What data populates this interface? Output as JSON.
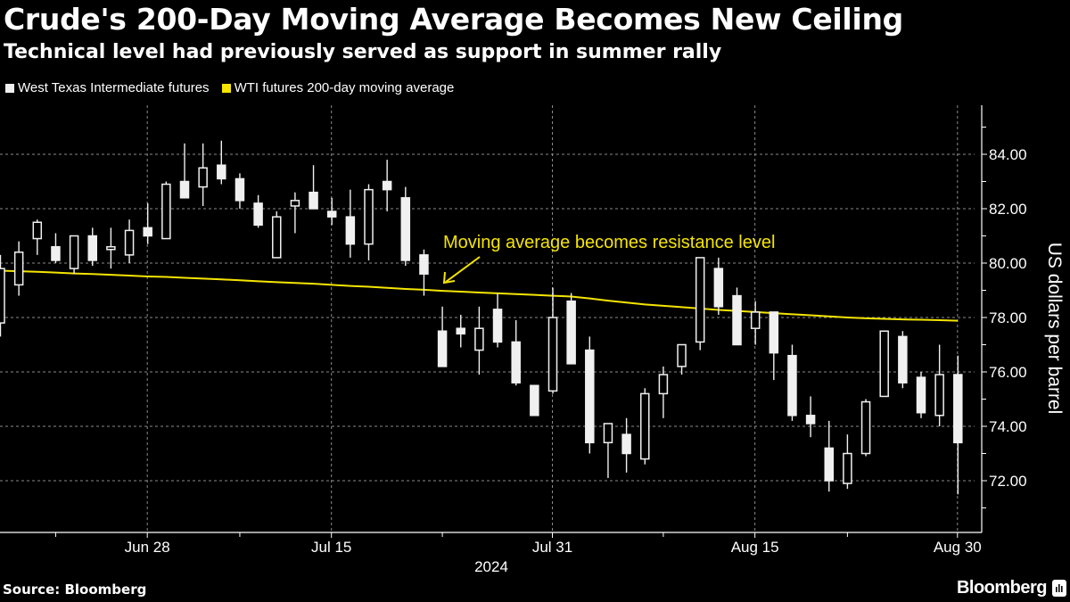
{
  "header": {
    "title": "Crude's 200-Day Moving Average Becomes New Ceiling",
    "subtitle": "Technical level had previously served as support in summer rally"
  },
  "legend": [
    {
      "label": "West Texas Intermediate futures",
      "color": "#f0f0f0"
    },
    {
      "label": "WTI futures 200-day moving average",
      "color": "#f5e500"
    }
  ],
  "footer": {
    "source": "Source: Bloomberg",
    "brand": "Bloomberg",
    "brand_icon": "bloomberg-terminal-icon"
  },
  "chart_data": {
    "type": "candlestick",
    "title": "Crude's 200-Day Moving Average Becomes New Ceiling",
    "subtitle": "Technical level had previously served as support in summer rally",
    "xlabel": "2024",
    "ylabel": "US dollars per barrel",
    "ylim": [
      70.3,
      85.5
    ],
    "yticks": [
      72,
      74,
      76,
      78,
      80,
      82,
      84
    ],
    "ytick_labels": [
      "72.00",
      "74.00",
      "76.00",
      "78.00",
      "80.00",
      "82.00",
      "84.00"
    ],
    "xtick_labels": [
      {
        "label": "Jun 28",
        "index": 8
      },
      {
        "label": "Jul 15",
        "index": 18
      },
      {
        "label": "Jul 31",
        "index": 30
      },
      {
        "label": "Aug 15",
        "index": 41
      },
      {
        "label": "Aug 30",
        "index": 52
      }
    ],
    "x_minor_tick_indices": [
      3,
      13,
      24,
      36,
      46
    ],
    "x_year_label": "2024",
    "grid": true,
    "legend_position": "top-left",
    "annotation": {
      "text": "Moving average becomes resistance level",
      "points_to_index": 24
    },
    "series": [
      {
        "name": "West Texas Intermediate futures",
        "kind": "ohlc",
        "ohlc": [
          [
            77.8,
            80.3,
            77.3,
            79.8
          ],
          [
            79.2,
            80.8,
            78.8,
            80.4
          ],
          [
            80.9,
            81.6,
            80.3,
            81.5
          ],
          [
            80.6,
            81.1,
            80.0,
            80.1
          ],
          [
            79.8,
            81.0,
            79.6,
            81.0
          ],
          [
            81.0,
            81.3,
            79.9,
            80.1
          ],
          [
            80.5,
            81.3,
            79.8,
            80.6
          ],
          [
            80.3,
            81.6,
            80.0,
            81.2
          ],
          [
            81.3,
            82.2,
            80.7,
            81.0
          ],
          [
            80.9,
            83.0,
            80.9,
            82.9
          ],
          [
            83.0,
            84.4,
            82.4,
            82.4
          ],
          [
            82.8,
            84.4,
            82.1,
            83.5
          ],
          [
            83.6,
            84.5,
            82.9,
            83.1
          ],
          [
            83.1,
            83.3,
            82.0,
            82.3
          ],
          [
            82.2,
            82.5,
            81.3,
            81.4
          ],
          [
            80.2,
            81.9,
            81.7,
            81.7
          ],
          [
            82.1,
            82.6,
            81.1,
            82.3
          ],
          [
            82.6,
            83.6,
            82.0,
            82.0
          ],
          [
            81.9,
            82.4,
            81.4,
            81.7
          ],
          [
            81.7,
            82.7,
            80.2,
            80.7
          ],
          [
            80.7,
            82.9,
            80.1,
            82.7
          ],
          [
            83.0,
            83.8,
            81.9,
            82.7
          ],
          [
            82.4,
            82.8,
            79.9,
            80.1
          ],
          [
            80.3,
            80.5,
            78.8,
            79.6
          ],
          [
            77.5,
            78.4,
            76.3,
            76.2
          ],
          [
            77.6,
            78.1,
            76.9,
            77.4
          ],
          [
            76.8,
            78.4,
            75.9,
            77.6
          ],
          [
            78.3,
            78.9,
            76.9,
            77.1
          ],
          [
            77.1,
            77.9,
            75.5,
            75.6
          ],
          [
            75.5,
            75.5,
            74.6,
            74.4
          ],
          [
            75.3,
            79.1,
            75.2,
            78.0
          ],
          [
            78.6,
            78.9,
            76.3,
            76.3
          ],
          [
            76.8,
            77.3,
            73.0,
            73.4
          ],
          [
            73.4,
            74.0,
            72.1,
            74.1
          ],
          [
            73.7,
            74.3,
            72.3,
            73.0
          ],
          [
            72.8,
            75.4,
            72.6,
            75.2
          ],
          [
            75.2,
            76.2,
            74.3,
            75.9
          ],
          [
            76.2,
            77.0,
            75.9,
            77.0
          ],
          [
            77.1,
            80.2,
            76.8,
            80.2
          ],
          [
            79.8,
            80.2,
            78.1,
            78.4
          ],
          [
            78.8,
            79.1,
            77.0,
            77.0
          ],
          [
            77.6,
            78.6,
            77.0,
            78.2
          ],
          [
            78.2,
            78.2,
            75.7,
            76.7
          ],
          [
            76.6,
            77.0,
            74.2,
            74.4
          ],
          [
            74.4,
            75.1,
            73.6,
            74.1
          ],
          [
            73.2,
            74.2,
            71.6,
            72.0
          ],
          [
            71.9,
            73.7,
            71.7,
            73.0
          ],
          [
            73.0,
            75.0,
            72.9,
            74.9
          ],
          [
            75.1,
            77.5,
            75.1,
            77.5
          ],
          [
            77.3,
            77.5,
            75.4,
            75.6
          ],
          [
            75.8,
            76.0,
            74.3,
            74.5
          ],
          [
            74.4,
            77.0,
            74.0,
            75.9
          ],
          [
            75.9,
            76.6,
            71.5,
            73.4
          ]
        ],
        "ohlc_fields": [
          "open",
          "high",
          "low",
          "close"
        ]
      },
      {
        "name": "WTI futures 200-day moving average",
        "kind": "line",
        "values": [
          79.72,
          79.7,
          79.68,
          79.65,
          79.62,
          79.6,
          79.57,
          79.54,
          79.51,
          79.49,
          79.46,
          79.43,
          79.4,
          79.37,
          79.33,
          79.3,
          79.27,
          79.24,
          79.2,
          79.16,
          79.13,
          79.09,
          79.05,
          79.02,
          78.98,
          78.95,
          78.92,
          78.89,
          78.86,
          78.83,
          78.8,
          78.77,
          78.7,
          78.62,
          78.55,
          78.48,
          78.43,
          78.38,
          78.33,
          78.28,
          78.24,
          78.2,
          78.16,
          78.12,
          78.08,
          78.04,
          78.0,
          77.97,
          77.95,
          77.93,
          77.92,
          77.9,
          77.88
        ]
      }
    ]
  }
}
